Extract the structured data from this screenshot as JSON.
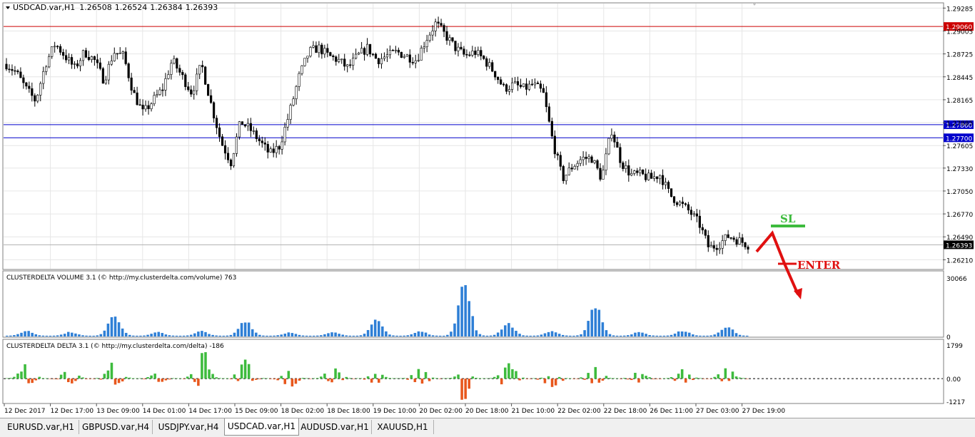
{
  "symbol_header": {
    "symbol": "USDCAD.var,H1",
    "open": "1.26508",
    "high": "1.26524",
    "low": "1.26384",
    "close": "1.26393"
  },
  "colors": {
    "bull_volume": "#2e7fd6",
    "delta_positive": "#3dbb3d",
    "delta_negative": "#e8571c",
    "resistance_line": "#cc0000",
    "support_lines": "#0000cc",
    "annotation_sl": "#3dbb3d",
    "annotation_enter": "#e01010"
  },
  "chart_data": [
    {
      "type": "candlestick",
      "title": "USDCAD.var,H1",
      "price_ticks": [
        "1.29285",
        "1.29005",
        "1.28725",
        "1.28445",
        "1.28165",
        "1.27885",
        "1.27605",
        "1.27330",
        "1.27050",
        "1.26770",
        "1.26490",
        "1.26210"
      ],
      "ylim": [
        1.261,
        1.2934
      ],
      "x_ticks": [
        "12 Dec 2017",
        "12 Dec 17:00",
        "13 Dec 09:00",
        "14 Dec 01:00",
        "14 Dec 17:00",
        "15 Dec 09:00",
        "18 Dec 02:00",
        "18 Dec 18:00",
        "19 Dec 10:00",
        "20 Dec 02:00",
        "20 Dec 18:00",
        "21 Dec 10:00",
        "22 Dec 02:00",
        "22 Dec 18:00",
        "26 Dec 11:00",
        "27 Dec 03:00",
        "27 Dec 19:00"
      ],
      "horizontal_lines": [
        {
          "price": 1.2906,
          "label": "1.29060",
          "kind": "resistance"
        },
        {
          "price": 1.2786,
          "label": "1.27860",
          "kind": "support"
        },
        {
          "price": 1.277,
          "label": "1.27700",
          "kind": "support"
        },
        {
          "price": 1.26393,
          "label": "1.26393",
          "kind": "bid"
        }
      ],
      "annotations": [
        {
          "text": "SL"
        },
        {
          "text": "ENTER"
        }
      ],
      "close_path": [
        1.286,
        1.285,
        1.283,
        1.2815,
        1.286,
        1.2885,
        1.287,
        1.2855,
        1.2875,
        1.2865,
        1.284,
        1.2875,
        1.287,
        1.2825,
        1.28,
        1.2815,
        1.283,
        1.2865,
        1.2845,
        1.2825,
        1.286,
        1.281,
        1.2765,
        1.274,
        1.279,
        1.278,
        1.2765,
        1.275,
        1.276,
        1.28,
        1.2845,
        1.2875,
        1.288,
        1.287,
        1.2865,
        1.2855,
        1.287,
        1.288,
        1.2865,
        1.287,
        1.2875,
        1.287,
        1.2865,
        1.289,
        1.291,
        1.2895,
        1.288,
        1.287,
        1.2875,
        1.2865,
        1.285,
        1.283,
        1.2835,
        1.283,
        1.2835,
        1.2825,
        1.2765,
        1.272,
        1.2735,
        1.2745,
        1.2745,
        1.272,
        1.278,
        1.274,
        1.2725,
        1.2725,
        1.272,
        1.2725,
        1.27,
        1.269,
        1.268,
        1.2665,
        1.2635,
        1.264,
        1.265,
        1.2645,
        1.26393
      ]
    },
    {
      "type": "bar",
      "title": "CLUSTERDELTA VOLUME 3.1 (© http://my.clusterdelta.com/volume) 763",
      "ylim": [
        0,
        30066
      ],
      "y_ticks": [
        "30066",
        "0"
      ],
      "spikes": [
        2800,
        2100,
        12500,
        2000,
        2600,
        9000,
        1800,
        2300,
        8600,
        2500,
        29500,
        7200,
        2600,
        18000,
        2000,
        2900,
        5400
      ]
    },
    {
      "type": "bar",
      "title": "CLUSTERDELTA DELTA 3.1 (© http://my.clusterdelta.com/delta) -186",
      "ylim": [
        -1217,
        1799
      ],
      "y_ticks": [
        "1799",
        "0.00",
        "-1217"
      ],
      "positive_spikes": [
        900,
        650,
        1050,
        300,
        1750,
        1200,
        450,
        900,
        300,
        650,
        350,
        1000,
        250,
        850,
        400,
        500,
        600
      ],
      "negative_spikes": [
        -350,
        -250,
        -400,
        -200,
        -450,
        -300,
        -500,
        -250,
        -300,
        -450,
        -1217,
        -550,
        -600,
        -300,
        -200,
        -250,
        -200
      ]
    }
  ],
  "tabs": [
    {
      "label": "EURUSD.var,H1",
      "active": false
    },
    {
      "label": "GBPUSD.var,H4",
      "active": false
    },
    {
      "label": "USDJPY.var,H4",
      "active": false
    },
    {
      "label": "USDCAD.var,H1",
      "active": true
    },
    {
      "label": "AUDUSD.var,H1",
      "active": false
    },
    {
      "label": "XAUUSD,H1",
      "active": false
    }
  ]
}
